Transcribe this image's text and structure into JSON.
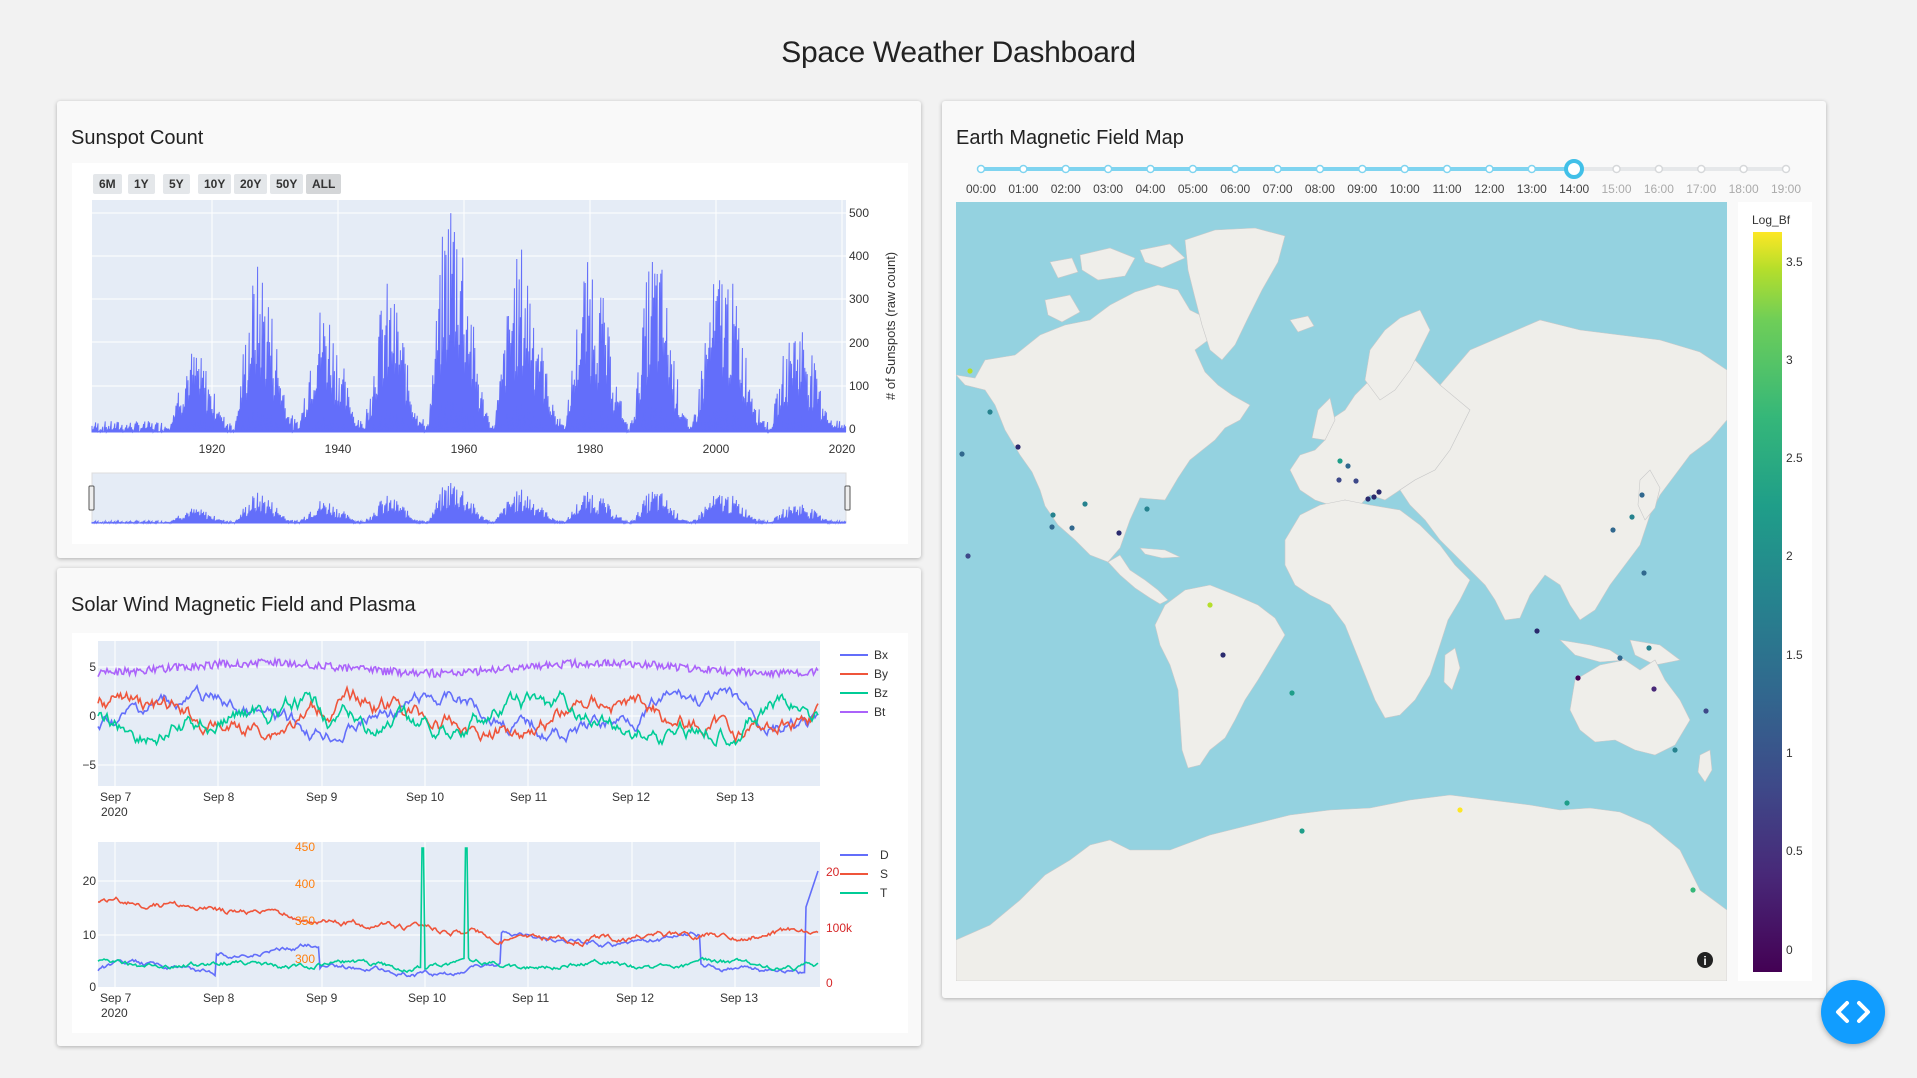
{
  "page": {
    "title": "Space Weather Dashboard"
  },
  "sunspot": {
    "title": "Sunspot Count",
    "range_buttons": [
      "6M",
      "1Y",
      "5Y",
      "10Y",
      "20Y",
      "50Y",
      "ALL"
    ],
    "active_button": "ALL",
    "ylabel": "# of Sunspots (raw count)",
    "y_ticks": [
      "0",
      "100",
      "200",
      "300",
      "400",
      "500"
    ],
    "x_ticks": [
      "1920",
      "1940",
      "1960",
      "1980",
      "2000",
      "2020"
    ]
  },
  "solar_wind": {
    "title": "Solar Wind Magnetic Field and Plasma",
    "mag_legend": [
      "Bx",
      "By",
      "Bz",
      "Bt"
    ],
    "mag_y_ticks": [
      "5",
      "0",
      "−5"
    ],
    "x_ticks": [
      "Sep 7",
      "Sep 8",
      "Sep 9",
      "Sep 10",
      "Sep 11",
      "Sep 12",
      "Sep 13"
    ],
    "x_year": "2020",
    "plasma_legend": [
      "D",
      "S",
      "T"
    ],
    "plasma_y_left": [
      "0",
      "10",
      "20"
    ],
    "plasma_y_mid": [
      "300",
      "350",
      "400",
      "450"
    ],
    "plasma_y_right": [
      "0",
      "100k",
      "20"
    ]
  },
  "map": {
    "title": "Earth Magnetic Field Map",
    "slider_steps": [
      "00:00",
      "01:00",
      "02:00",
      "03:00",
      "04:00",
      "05:00",
      "06:00",
      "07:00",
      "08:00",
      "09:00",
      "10:00",
      "11:00",
      "12:00",
      "13:00",
      "14:00",
      "15:00",
      "16:00",
      "17:00",
      "18:00",
      "19:00"
    ],
    "slider_value": "14:00",
    "colorbar_title": "Log_Bf",
    "colorbar_ticks": [
      "0",
      "0.5",
      "1",
      "1.5",
      "2",
      "2.5",
      "3",
      "3.5"
    ]
  },
  "colors": {
    "bx": "#636efa",
    "by": "#ef553b",
    "bz": "#00cc96",
    "bt": "#ab63fa",
    "ocean": "#94d2e0",
    "land": "#efeeea",
    "accent": "#119dff",
    "slider": "#7fd4f0"
  },
  "fab": {
    "icon": "code-icon"
  }
}
